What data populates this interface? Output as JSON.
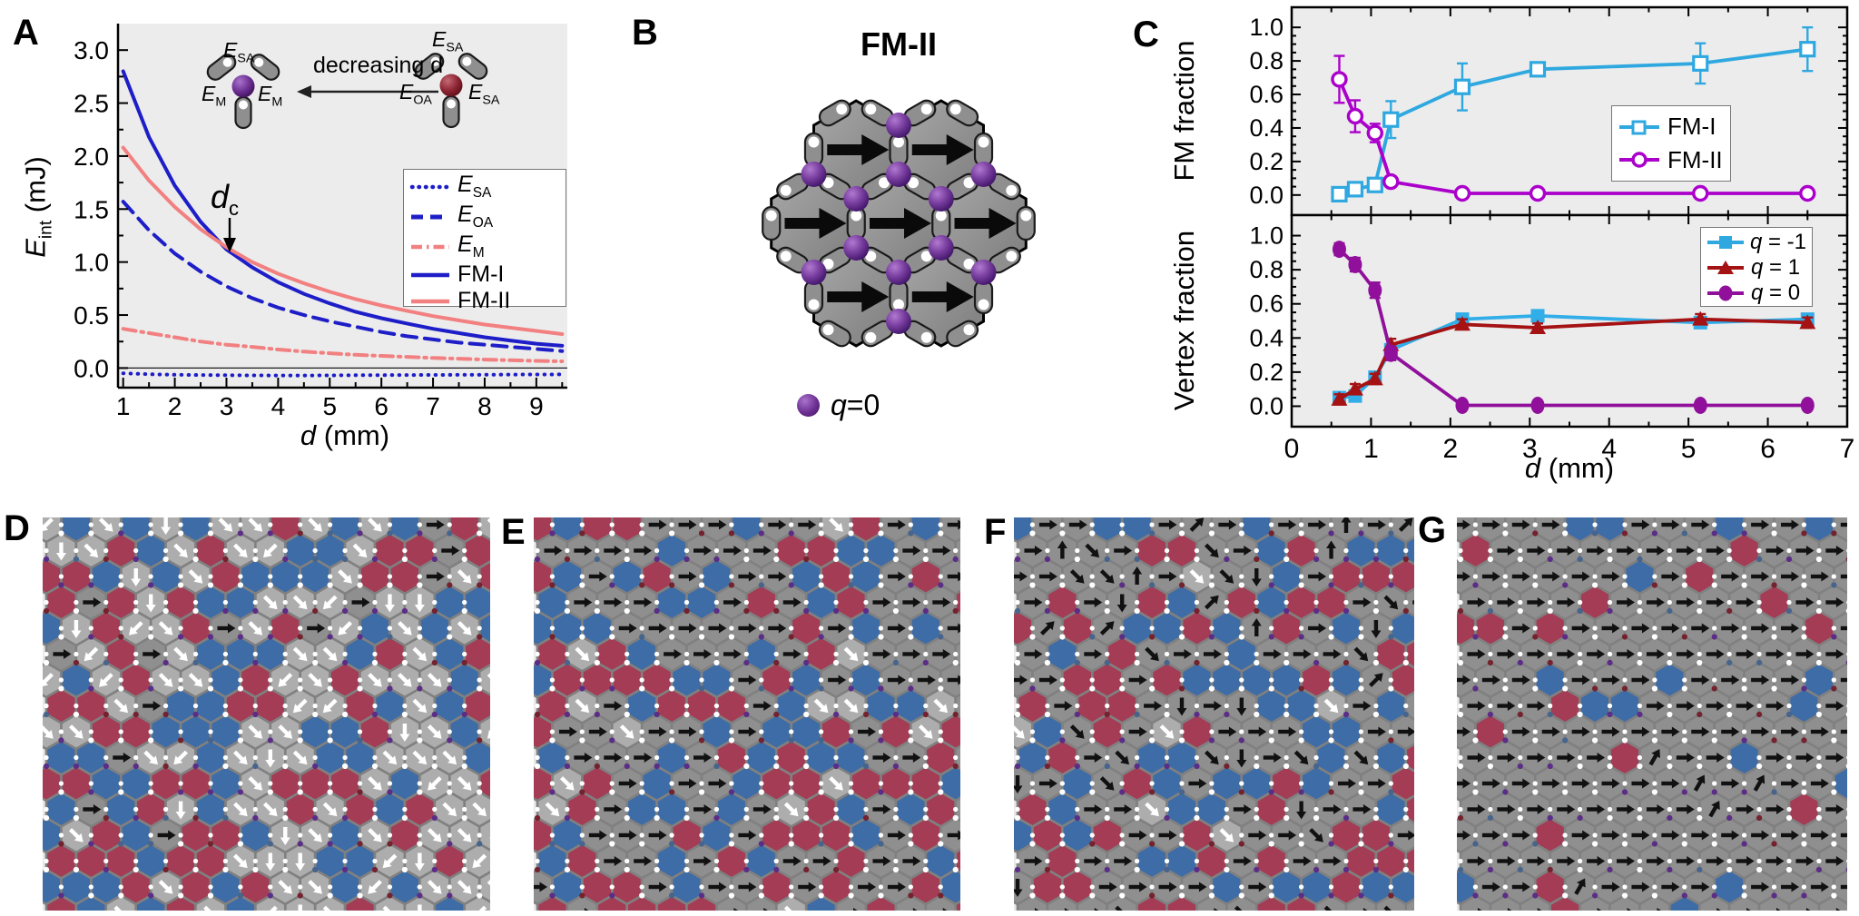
{
  "panels": {
    "a": "A",
    "b": "B",
    "c": "C",
    "d": "D",
    "e": "E",
    "f": "F",
    "g": "G"
  },
  "colors": {
    "blue": "#1E1EC8",
    "salmon": "#F28080",
    "cyan": "#2FA8E0",
    "magenta": "#AB00CB",
    "darkred": "#A51214",
    "purple": "#90109B",
    "red_hex": "#A43C55",
    "blue_hex": "#3E6CA6",
    "gray_light": "#ADADAD",
    "gray_dark": "#8F8F8F",
    "hex_stroke": "#808080",
    "mosaic_bg": "#E8E8E8",
    "plot_bg": "#ECECEC",
    "sphere_purple": "#6B2E91",
    "sphere_darkred": "#7D1F2C"
  },
  "panel_a": {
    "ylabel": {
      "main": "E",
      "sub": "int",
      "unit": " (mJ)"
    },
    "xlabel": {
      "main": "d",
      "unit": " (mm)"
    },
    "annotation": {
      "main": "d",
      "sub": "c"
    },
    "inset": {
      "arrow_label": "decreasing d",
      "left": {
        "top": {
          "main": "E",
          "sub": "SA"
        },
        "left": {
          "main": "E",
          "sub": "M"
        },
        "right": {
          "main": "E",
          "sub": "M"
        }
      },
      "right": {
        "top": {
          "main": "E",
          "sub": "SA"
        },
        "left": {
          "main": "E",
          "sub": "OA"
        },
        "right": {
          "main": "E",
          "sub": "SA"
        }
      }
    },
    "legend": [
      {
        "main": "E",
        "sub": "SA"
      },
      {
        "main": "E",
        "sub": "OA"
      },
      {
        "main": "E",
        "sub": "M"
      },
      {
        "main": "FM-I",
        "sub": ""
      },
      {
        "main": "FM-II",
        "sub": ""
      }
    ]
  },
  "panel_b": {
    "title": "FM-II",
    "legend": {
      "sym": "q",
      "rest": "=0"
    }
  },
  "panel_c": {
    "top_ylabel": "FM fraction",
    "bottom_ylabel": "Vertex fraction",
    "xlabel": {
      "main": "d",
      "unit": " (mm)"
    },
    "top_legend": [
      {
        "label": "FM-I"
      },
      {
        "label": "FM-II"
      }
    ],
    "bottom_legend": [
      {
        "q": "q",
        "rest": " = -1"
      },
      {
        "q": "q",
        "rest": " = 1"
      },
      {
        "q": "q",
        "rest": " = 0"
      }
    ]
  },
  "chart_data": [
    {
      "id": "panel-A",
      "type": "line",
      "title": "",
      "xlabel": "d (mm)",
      "ylabel": "E_int (mJ)",
      "xlim": [
        0.9,
        9.6
      ],
      "ylim": [
        -0.185,
        3.25
      ],
      "xticks": [
        1,
        2,
        3,
        4,
        5,
        6,
        7,
        8,
        9
      ],
      "yticks": [
        0.0,
        0.5,
        1.0,
        1.5,
        2.0,
        2.5,
        3.0
      ],
      "grid": false,
      "legend_position": "right-middle",
      "annotation": "d_c arrow near d=3 crossing of FM-I and FM-II",
      "x": [
        1,
        1.5,
        2,
        2.5,
        3,
        3.5,
        4,
        4.5,
        5,
        5.5,
        6,
        6.5,
        7,
        7.5,
        8,
        8.5,
        9,
        9.5
      ],
      "series": [
        {
          "name": "E_SA",
          "style": "dotted",
          "color": "#1E1EC8",
          "values": [
            -0.05,
            -0.058,
            -0.063,
            -0.066,
            -0.068,
            -0.069,
            -0.07,
            -0.07,
            -0.069,
            -0.068,
            -0.067,
            -0.066,
            -0.065,
            -0.064,
            -0.063,
            -0.062,
            -0.061,
            -0.06
          ]
        },
        {
          "name": "E_OA",
          "style": "dashed",
          "color": "#1E1EC8",
          "values": [
            1.57,
            1.3,
            1.08,
            0.91,
            0.77,
            0.66,
            0.57,
            0.5,
            0.44,
            0.39,
            0.34,
            0.3,
            0.27,
            0.24,
            0.22,
            0.2,
            0.18,
            0.16
          ]
        },
        {
          "name": "E_M",
          "style": "dashdot",
          "color": "#F28080",
          "values": [
            0.37,
            0.33,
            0.29,
            0.25,
            0.22,
            0.2,
            0.175,
            0.155,
            0.14,
            0.125,
            0.115,
            0.105,
            0.095,
            0.088,
            0.08,
            0.074,
            0.068,
            0.063
          ]
        },
        {
          "name": "FM-I",
          "style": "solid",
          "color": "#1E1EC8",
          "values": [
            2.8,
            2.18,
            1.72,
            1.38,
            1.12,
            0.95,
            0.81,
            0.7,
            0.61,
            0.53,
            0.47,
            0.42,
            0.37,
            0.33,
            0.29,
            0.26,
            0.23,
            0.21
          ]
        },
        {
          "name": "FM-II",
          "style": "solid",
          "color": "#F28080",
          "values": [
            2.08,
            1.77,
            1.52,
            1.31,
            1.14,
            1.0,
            0.89,
            0.8,
            0.72,
            0.65,
            0.59,
            0.54,
            0.49,
            0.45,
            0.41,
            0.38,
            0.35,
            0.32
          ]
        }
      ]
    },
    {
      "id": "panel-C-top",
      "type": "scatter",
      "title": "",
      "xlabel": "d (mm)",
      "ylabel": "FM fraction",
      "xlim": [
        0,
        7
      ],
      "ylim": [
        -0.12,
        1.12
      ],
      "xticks": [
        0,
        1,
        2,
        3,
        4,
        5,
        6,
        7
      ],
      "yticks": [
        0.0,
        0.2,
        0.4,
        0.6,
        0.8,
        1.0
      ],
      "grid": false,
      "legend_position": "right-middle",
      "x": [
        0.6,
        0.8,
        1.05,
        1.25,
        2.15,
        3.1,
        5.15,
        6.5
      ],
      "series": [
        {
          "name": "FM-I",
          "marker": "square-open",
          "color": "#2FA8E0",
          "values": [
            0.005,
            0.035,
            0.06,
            0.45,
            0.645,
            0.75,
            0.785,
            0.87
          ],
          "errors": [
            0.02,
            0.02,
            0.025,
            0.11,
            0.14,
            0.025,
            0.12,
            0.13
          ]
        },
        {
          "name": "FM-II",
          "marker": "circle-open",
          "color": "#AB00CB",
          "values": [
            0.69,
            0.47,
            0.37,
            0.08,
            0.01,
            0.01,
            0.01,
            0.01
          ],
          "errors": [
            0.14,
            0.095,
            0.055,
            0.03,
            0.012,
            0.012,
            0.012,
            0.012
          ]
        }
      ]
    },
    {
      "id": "panel-C-bottom",
      "type": "scatter",
      "title": "",
      "xlabel": "d (mm)",
      "ylabel": "Vertex fraction",
      "xlim": [
        0,
        7
      ],
      "ylim": [
        -0.12,
        1.12
      ],
      "xticks": [
        0,
        1,
        2,
        3,
        4,
        5,
        6,
        7
      ],
      "yticks": [
        0.0,
        0.2,
        0.4,
        0.6,
        0.8,
        1.0
      ],
      "grid": false,
      "legend_position": "right-top",
      "x": [
        0.6,
        0.8,
        1.05,
        1.25,
        2.15,
        3.1,
        5.15,
        6.5
      ],
      "series": [
        {
          "name": "q = -1",
          "marker": "square-fill",
          "color": "#31ADE8",
          "values": [
            0.05,
            0.06,
            0.17,
            0.33,
            0.51,
            0.53,
            0.49,
            0.51
          ],
          "errors": [
            0.03,
            0.025,
            0.03,
            0.035,
            0.03,
            0.025,
            0.03,
            0.03
          ]
        },
        {
          "name": "q = 1",
          "marker": "triangle-fill",
          "color": "#A51214",
          "values": [
            0.04,
            0.1,
            0.16,
            0.36,
            0.48,
            0.46,
            0.51,
            0.49
          ],
          "errors": [
            0.03,
            0.03,
            0.03,
            0.035,
            0.03,
            0.025,
            0.03,
            0.03
          ]
        },
        {
          "name": "q = 0",
          "marker": "circle-fill",
          "color": "#90109B",
          "values": [
            0.92,
            0.83,
            0.68,
            0.31,
            0.005,
            0.005,
            0.005,
            0.005
          ],
          "errors": [
            0.035,
            0.04,
            0.045,
            0.04,
            0.01,
            0.01,
            0.01,
            0.01
          ]
        }
      ]
    }
  ],
  "panels_dg": [
    {
      "label": "D",
      "seed": 7,
      "mix": [
        {
          "fill": "gray_light",
          "w": 0.5,
          "arrow": "#FFFFFF",
          "dirs": [
            [
              45,
              0.72
            ],
            [
              90,
              0.14
            ],
            [
              135,
              0.14
            ]
          ]
        },
        {
          "fill": "blue_hex",
          "w": 0.22
        },
        {
          "fill": "red_hex",
          "w": 0.24
        },
        {
          "fill": "gray_dark",
          "w": 0.04,
          "arrow": "#111111",
          "dirs": [
            [
              0,
              1
            ]
          ]
        }
      ]
    },
    {
      "label": "E",
      "seed": 41,
      "mix": [
        {
          "fill": "gray_dark",
          "w": 0.42,
          "arrow": "#111111",
          "dirs": [
            [
              0,
              1
            ]
          ]
        },
        {
          "fill": "gray_light",
          "w": 0.06,
          "arrow": "#FFFFFF",
          "dirs": [
            [
              45,
              1
            ]
          ]
        },
        {
          "fill": "blue_hex",
          "w": 0.26
        },
        {
          "fill": "red_hex",
          "w": 0.26
        }
      ]
    },
    {
      "label": "F",
      "seed": 13,
      "mix": [
        {
          "fill": "gray_dark",
          "w": 0.48,
          "arrow": "#111111",
          "dirs": [
            [
              0,
              0.6
            ],
            [
              -45,
              0.13
            ],
            [
              45,
              0.13
            ],
            [
              -90,
              0.07
            ],
            [
              90,
              0.07
            ]
          ]
        },
        {
          "fill": "gray_light",
          "w": 0.03,
          "arrow": "#FFFFFF",
          "dirs": [
            [
              45,
              1
            ]
          ]
        },
        {
          "fill": "blue_hex",
          "w": 0.23
        },
        {
          "fill": "red_hex",
          "w": 0.26
        }
      ]
    },
    {
      "label": "G",
      "seed": 97,
      "mix": [
        {
          "fill": "gray_dark",
          "w": 0.87,
          "arrow": "#111111",
          "dirs": [
            [
              0,
              0.96
            ],
            [
              -60,
              0.04
            ]
          ]
        },
        {
          "fill": "blue_hex",
          "w": 0.08
        },
        {
          "fill": "red_hex",
          "w": 0.05
        }
      ]
    }
  ],
  "dot_colors": [
    [
      "#FFFFFF",
      0.5
    ],
    [
      "#5B2D86",
      0.27
    ],
    [
      "#73222E",
      0.13
    ],
    [
      "#46648C",
      0.1
    ]
  ]
}
